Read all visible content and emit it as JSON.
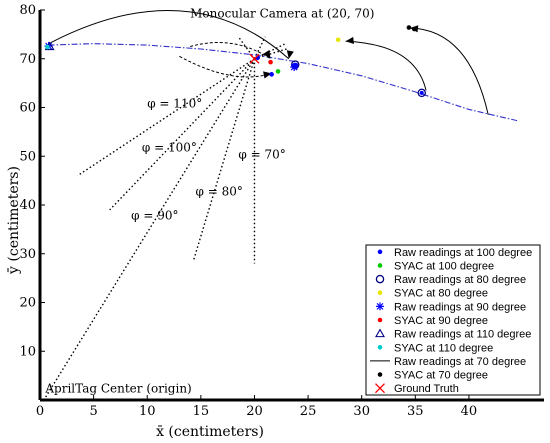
{
  "chart_data": {
    "type": "scatter",
    "title": "",
    "xlabel": "x̄ (centimeters)",
    "ylabel": "ȳ (centimeters)",
    "xlim": [
      0,
      47
    ],
    "ylim": [
      0,
      80
    ],
    "x_ticks": [
      0,
      5,
      10,
      15,
      20,
      25,
      30,
      35,
      40
    ],
    "y_ticks": [
      10,
      20,
      30,
      40,
      50,
      60,
      70,
      80
    ],
    "grid": false,
    "legend_position": "bottom-right",
    "annotations": [
      {
        "id": "camera",
        "text": "Monocular Camera at (20, 70)",
        "x": 14,
        "y": 78.5
      },
      {
        "id": "origin",
        "text": "AprilTag Center (origin)",
        "x": 0.5,
        "y": 1.5
      },
      {
        "id": "phi110",
        "text": "φ = 110°",
        "x": 10,
        "y": 60
      },
      {
        "id": "phi100",
        "text": "φ = 100°",
        "x": 9.5,
        "y": 51
      },
      {
        "id": "phi70",
        "text": "φ = 70°",
        "x": 18.5,
        "y": 49.5
      },
      {
        "id": "phi80",
        "text": "φ = 80°",
        "x": 14.5,
        "y": 42
      },
      {
        "id": "phi90",
        "text": "φ = 90°",
        "x": 8.5,
        "y": 37
      }
    ],
    "series": [
      {
        "name": "Raw readings at 100 degree",
        "marker": "dot",
        "color": "#0000ff",
        "points": [
          [
            20.3,
            70.2
          ],
          [
            21.6,
            66.8
          ]
        ]
      },
      {
        "name": "SYAC at 100 degree",
        "marker": "dot",
        "color": "#00cc00",
        "points": [
          [
            22.2,
            67.4
          ]
        ]
      },
      {
        "name": "Raw readings at 80 degree",
        "marker": "circle",
        "color": "#000080",
        "points": [
          [
            23.8,
            68.8
          ],
          [
            35.6,
            63.0
          ]
        ]
      },
      {
        "name": "SYAC at 80 degree",
        "marker": "dot",
        "color": "#e6e600",
        "points": [
          [
            27.8,
            73.9
          ]
        ]
      },
      {
        "name": "Raw readings at 90 degree",
        "marker": "star",
        "color": "#0000ff",
        "points": [
          [
            23.7,
            68.3
          ],
          [
            0.8,
            72.6
          ]
        ]
      },
      {
        "name": "SYAC at 90 degree",
        "marker": "dot",
        "color": "#ff0000",
        "points": [
          [
            21.5,
            69.3
          ]
        ]
      },
      {
        "name": "Raw readings at 110 degree",
        "marker": "triangle",
        "color": "#000080",
        "points": [
          [
            0.9,
            72.5
          ]
        ]
      },
      {
        "name": "SYAC at 110 degree",
        "marker": "dot",
        "color": "#00cccc",
        "points": [
          [
            0.7,
            72.4
          ]
        ]
      },
      {
        "name": "Raw readings at 70 degree",
        "marker": "line",
        "color": "#000000",
        "points": []
      },
      {
        "name": "SYAC at 70 degree",
        "marker": "dot",
        "color": "#000000",
        "points": [
          [
            34.4,
            76.4
          ],
          [
            34.9,
            76.1
          ]
        ]
      },
      {
        "name": "Ground Truth",
        "marker": "x",
        "color": "#ff0000",
        "points": [
          [
            20,
            70
          ]
        ]
      }
    ],
    "trajectory_dashdot": [
      [
        0.8,
        72.8
      ],
      [
        5,
        73.1
      ],
      [
        10,
        72.8
      ],
      [
        15,
        72
      ],
      [
        20,
        70.8
      ],
      [
        25,
        69
      ],
      [
        30,
        66.5
      ],
      [
        35,
        63.2
      ],
      [
        40,
        59.6
      ],
      [
        44.5,
        57.3
      ]
    ],
    "boundary_lines": [
      {
        "from": [
          20,
          70
        ],
        "to": [
          0.5,
          0.5
        ]
      },
      {
        "from": [
          20,
          70
        ],
        "to": [
          3.5,
          46
        ]
      },
      {
        "from": [
          20,
          70
        ],
        "to": [
          6.5,
          39
        ]
      },
      {
        "from": [
          20,
          70
        ],
        "to": [
          14.3,
          28.5
        ]
      },
      {
        "from": [
          20,
          70
        ],
        "to": [
          20,
          28
        ]
      },
      {
        "from": [
          20,
          70
        ],
        "to": [
          18.5,
          74.5
        ]
      },
      {
        "from": [
          20,
          70
        ],
        "to": [
          21,
          74.5
        ]
      },
      {
        "from": [
          20,
          70
        ],
        "to": [
          22.8,
          73
        ]
      },
      {
        "from": [
          20,
          70
        ],
        "to": [
          23,
          72
        ]
      }
    ],
    "arcs": [
      {
        "from": [
          1,
          73.3
        ],
        "ctrl": [
          14,
          88
        ],
        "to": [
          23.2,
          70
        ],
        "style": "solid"
      },
      {
        "from": [
          41.8,
          58.5
        ],
        "ctrl": [
          40,
          76
        ],
        "to": [
          34.5,
          76.3
        ],
        "style": "solid"
      },
      {
        "from": [
          36,
          63.5
        ],
        "ctrl": [
          35,
          73
        ],
        "to": [
          28.5,
          73.6
        ],
        "style": "solid"
      },
      {
        "from": [
          13,
          70.5
        ],
        "ctrl": [
          18,
          64.5
        ],
        "to": [
          21.6,
          67
        ],
        "style": "dashed"
      },
      {
        "from": [
          14,
          72.5
        ],
        "ctrl": [
          18,
          75
        ],
        "to": [
          21.5,
          70
        ],
        "style": "dashed"
      }
    ],
    "arrows": [
      {
        "at": [
          23.2,
          70
        ],
        "dir": [
          -0.2,
          -1
        ]
      },
      {
        "at": [
          34.5,
          76.3
        ],
        "dir": [
          -1,
          0.1
        ]
      },
      {
        "at": [
          28.5,
          73.6
        ],
        "dir": [
          -1,
          -0.1
        ]
      },
      {
        "at": [
          21.6,
          67
        ],
        "dir": [
          1,
          0.2
        ]
      },
      {
        "at": [
          21.5,
          70
        ],
        "dir": [
          0.5,
          -0.8
        ]
      }
    ]
  }
}
